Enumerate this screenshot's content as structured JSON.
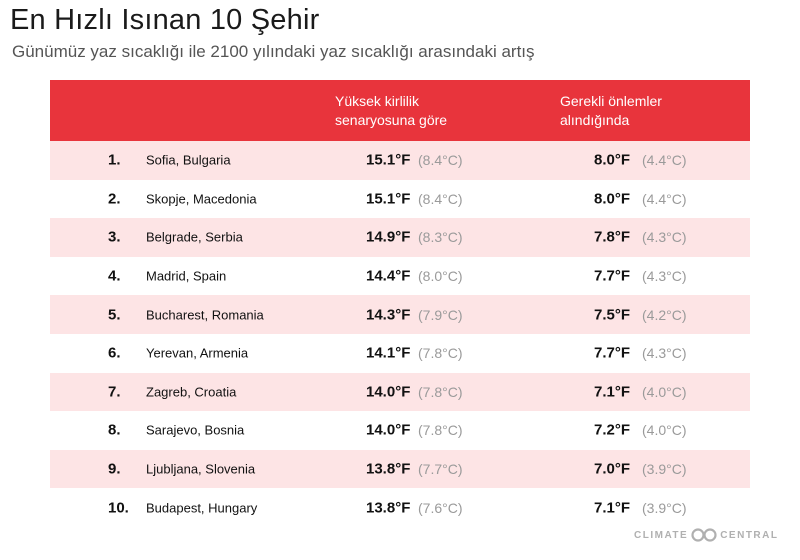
{
  "title": "En Hızlı Isınan 10 Şehir",
  "subtitle": "Günümüz yaz sıcaklığı ile 2100 yılındaki yaz sıcaklığı arasındaki artış",
  "header": {
    "col_a_line1": "Yüksek kirlilik",
    "col_a_line2": "senaryosuna göre",
    "col_b_line1": "Gerekli önlemler",
    "col_b_line2": "alındığında"
  },
  "colors": {
    "header_bg": "#e8343c",
    "row_shade": "#fde4e5",
    "celsius_text": "#9a9a9a"
  },
  "chart_data": {
    "type": "table",
    "title": "En Hızlı Isınan 10 Şehir",
    "subtitle": "Günümüz yaz sıcaklığı ile 2100 yılındaki yaz sıcaklığı arasındaki artış",
    "columns": [
      "",
      "",
      "Yüksek kirlilik senaryosuna göre",
      "Gerekli önlemler alındığında"
    ],
    "rows": [
      {
        "rank": "1.",
        "city": "Sofia, Bulgaria",
        "high_f": "15.1°F",
        "high_c": "(8.4°C)",
        "low_f": "8.0°F",
        "low_c": "(4.4°C)"
      },
      {
        "rank": "2.",
        "city": "Skopje, Macedonia",
        "high_f": "15.1°F",
        "high_c": "(8.4°C)",
        "low_f": "8.0°F",
        "low_c": "(4.4°C)"
      },
      {
        "rank": "3.",
        "city": "Belgrade, Serbia",
        "high_f": "14.9°F",
        "high_c": "(8.3°C)",
        "low_f": "7.8°F",
        "low_c": "(4.3°C)"
      },
      {
        "rank": "4.",
        "city": "Madrid, Spain",
        "high_f": "14.4°F",
        "high_c": "(8.0°C)",
        "low_f": "7.7°F",
        "low_c": "(4.3°C)"
      },
      {
        "rank": "5.",
        "city": "Bucharest, Romania",
        "high_f": "14.3°F",
        "high_c": "(7.9°C)",
        "low_f": "7.5°F",
        "low_c": "(4.2°C)"
      },
      {
        "rank": "6.",
        "city": "Yerevan, Armenia",
        "high_f": "14.1°F",
        "high_c": "(7.8°C)",
        "low_f": "7.7°F",
        "low_c": "(4.3°C)"
      },
      {
        "rank": "7.",
        "city": "Zagreb, Croatia",
        "high_f": "14.0°F",
        "high_c": "(7.8°C)",
        "low_f": "7.1°F",
        "low_c": "(4.0°C)"
      },
      {
        "rank": "8.",
        "city": "Sarajevo, Bosnia",
        "high_f": "14.0°F",
        "high_c": "(7.8°C)",
        "low_f": "7.2°F",
        "low_c": "(4.0°C)"
      },
      {
        "rank": "9.",
        "city": "Ljubljana, Slovenia",
        "high_f": "13.8°F",
        "high_c": "(7.7°C)",
        "low_f": "7.0°F",
        "low_c": "(3.9°C)"
      },
      {
        "rank": "10.",
        "city": "Budapest, Hungary",
        "high_f": "13.8°F",
        "high_c": "(7.6°C)",
        "low_f": "7.1°F",
        "low_c": "(3.9°C)"
      }
    ]
  },
  "logo": {
    "left": "CLIMATE",
    "right": "CENTRAL",
    "icon": "climate-central-logo-icon"
  }
}
